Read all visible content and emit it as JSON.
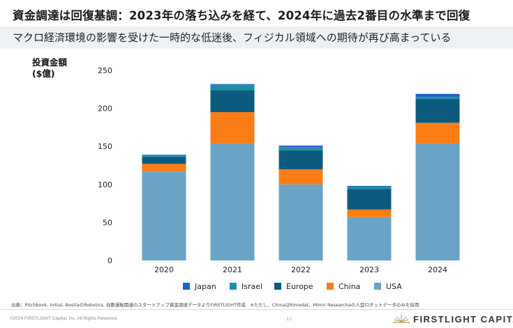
{
  "title": "資金調達は回復基調：2023年の落ち込みを経て、2024年に過去2番目の水準まで回復",
  "subtitle": "マクロ経済環境の影響を受けた一時的な低迷後、フィジカル領域への期待が再び高まっている",
  "source": "出典：Pitchbook, Initial, BestlaのRobotics, 自動運転関連のスタートアップ資金調達データよりFIRSTLIGHT作成　※ただし、ChinaはRimedat、Mimir Researchaの人型ロボットデータのみを採用",
  "copyright": "©2024 FIRSTLIGHT Capital, Inc. All Rights Reserved",
  "page_number": "11",
  "brand": "FIRSTLIGHT CAPITAL",
  "chart_data": {
    "type": "bar",
    "stacked": true,
    "ylabel_line1": "投資金額",
    "ylabel_line2": "($億)",
    "ylim": [
      0,
      250
    ],
    "yticks": [
      0,
      50,
      100,
      150,
      200,
      250
    ],
    "categories": [
      "2020",
      "2021",
      "2022",
      "2023",
      "2024"
    ],
    "series": [
      {
        "name": "USA",
        "color": "#6aa3c6",
        "values": [
          117,
          154,
          100,
          57,
          154
        ]
      },
      {
        "name": "China",
        "color": "#fb7d18",
        "values": [
          10,
          41,
          20,
          10,
          27
        ]
      },
      {
        "name": "Europe",
        "color": "#0c5a7e",
        "values": [
          9,
          29,
          25,
          27,
          31
        ]
      },
      {
        "name": "Israel",
        "color": "#1f8fa2",
        "values": [
          2,
          7,
          4,
          3,
          3
        ]
      },
      {
        "name": "Japan",
        "color": "#1f5fcf",
        "values": [
          1,
          1,
          2,
          1,
          4
        ]
      }
    ],
    "legend_order": [
      "Japan",
      "Israel",
      "Europe",
      "China",
      "USA"
    ],
    "legend_position": "bottom",
    "grid": false
  }
}
